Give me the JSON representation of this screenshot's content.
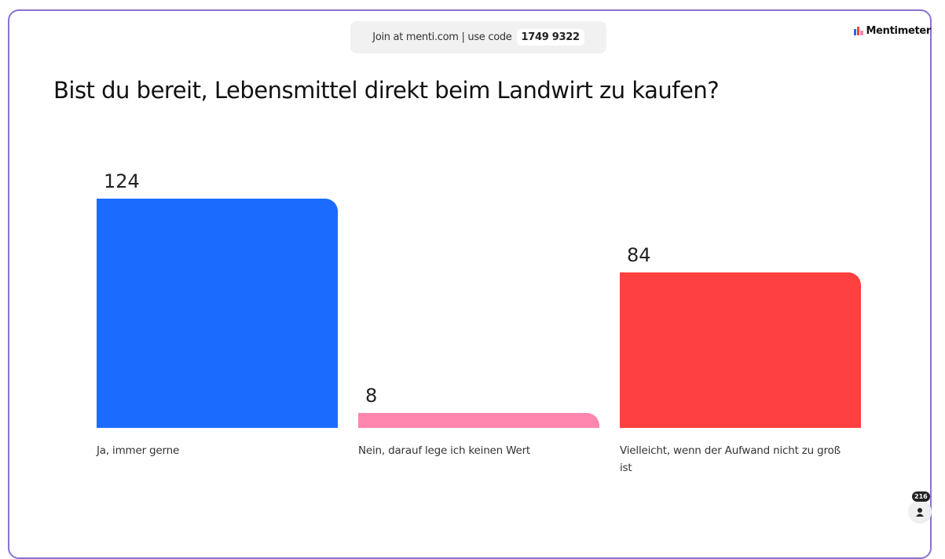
{
  "header": {
    "join_text": "Join at menti.com | use code",
    "code": "1749 9322",
    "brand": "Mentimeter"
  },
  "chart_data": {
    "type": "bar",
    "title": "Bist du bereit, Lebensmittel direkt beim Landwirt zu kaufen?",
    "categories": [
      "Ja, immer gerne",
      "Nein, darauf lege ich keinen Wert",
      "Vielleicht, wenn der Aufwand nicht zu groß ist"
    ],
    "values": [
      124,
      8,
      84
    ],
    "colors": [
      "#1c6bff",
      "#ff86ae",
      "#ff4040"
    ]
  },
  "participants": "216"
}
